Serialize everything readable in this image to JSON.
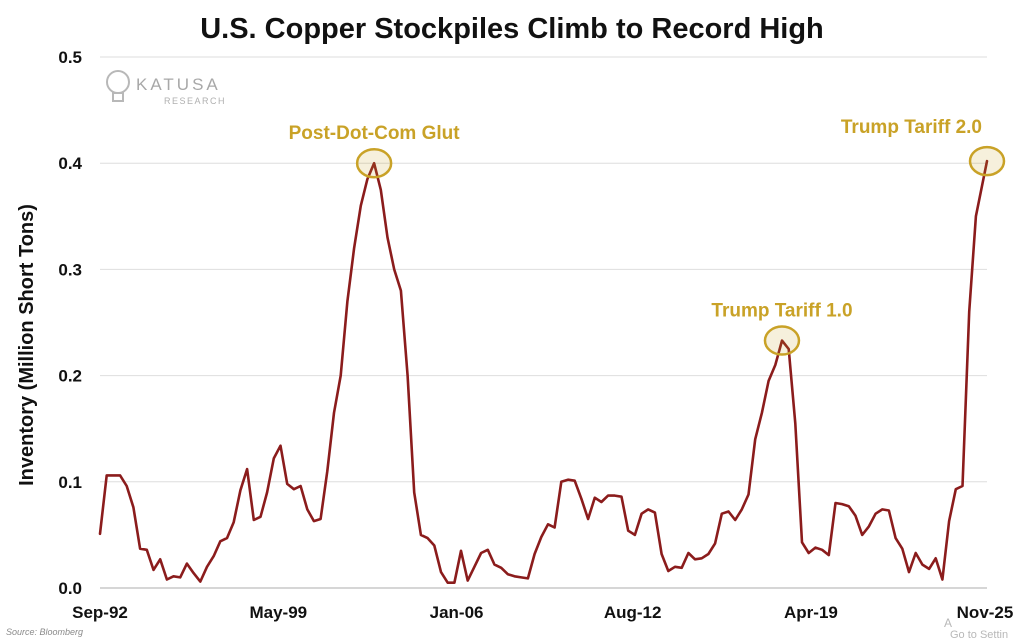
{
  "chart_data": {
    "type": "line",
    "title": "U.S. Copper Stockpiles Climb to Record High",
    "ylabel": "Inventory (Million Short Tons)",
    "xlabel": "",
    "ylim": [
      0.0,
      0.5
    ],
    "yticks": [
      "0.0",
      "0.1",
      "0.2",
      "0.3",
      "0.4",
      "0.5"
    ],
    "xlim": [
      "1992-09",
      "2025-11"
    ],
    "xticks": [
      {
        "label": "Sep-92",
        "date": "1992-09"
      },
      {
        "label": "May-99",
        "date": "1999-05"
      },
      {
        "label": "Jan-06",
        "date": "2006-01"
      },
      {
        "label": "Aug-12",
        "date": "2012-08"
      },
      {
        "label": "Apr-19",
        "date": "2019-04"
      },
      {
        "label": "Nov-25",
        "date": "2025-11"
      }
    ],
    "grid": true,
    "line_color": "#8b1c1c",
    "annotation_color": "#c9a227",
    "series": [
      {
        "points": [
          [
            "1992-09",
            0.051
          ],
          [
            "1992-12",
            0.106
          ],
          [
            "1993-03",
            0.106
          ],
          [
            "1993-06",
            0.106
          ],
          [
            "1993-09",
            0.096
          ],
          [
            "1993-12",
            0.076
          ],
          [
            "1994-03",
            0.037
          ],
          [
            "1994-06",
            0.036
          ],
          [
            "1994-09",
            0.017
          ],
          [
            "1994-12",
            0.027
          ],
          [
            "1995-03",
            0.008
          ],
          [
            "1995-06",
            0.011
          ],
          [
            "1995-09",
            0.01
          ],
          [
            "1995-12",
            0.023
          ],
          [
            "1996-03",
            0.014
          ],
          [
            "1996-06",
            0.006
          ],
          [
            "1996-09",
            0.02
          ],
          [
            "1996-12",
            0.03
          ],
          [
            "1997-03",
            0.044
          ],
          [
            "1997-06",
            0.047
          ],
          [
            "1997-09",
            0.062
          ],
          [
            "1997-12",
            0.092
          ],
          [
            "1998-03",
            0.112
          ],
          [
            "1998-06",
            0.064
          ],
          [
            "1998-09",
            0.067
          ],
          [
            "1998-12",
            0.09
          ],
          [
            "1999-03",
            0.122
          ],
          [
            "1999-06",
            0.134
          ],
          [
            "1999-09",
            0.098
          ],
          [
            "1999-12",
            0.093
          ],
          [
            "2000-03",
            0.096
          ],
          [
            "2000-06",
            0.074
          ],
          [
            "2000-09",
            0.063
          ],
          [
            "2000-12",
            0.065
          ],
          [
            "2001-03",
            0.11
          ],
          [
            "2001-06",
            0.165
          ],
          [
            "2001-09",
            0.2
          ],
          [
            "2001-12",
            0.27
          ],
          [
            "2002-03",
            0.32
          ],
          [
            "2002-06",
            0.36
          ],
          [
            "2002-09",
            0.385
          ],
          [
            "2002-12",
            0.4
          ],
          [
            "2003-03",
            0.375
          ],
          [
            "2003-06",
            0.33
          ],
          [
            "2003-09",
            0.3
          ],
          [
            "2003-12",
            0.28
          ],
          [
            "2004-03",
            0.2
          ],
          [
            "2004-06",
            0.09
          ],
          [
            "2004-09",
            0.05
          ],
          [
            "2004-12",
            0.047
          ],
          [
            "2005-03",
            0.04
          ],
          [
            "2005-06",
            0.015
          ],
          [
            "2005-09",
            0.005
          ],
          [
            "2005-12",
            0.005
          ],
          [
            "2006-03",
            0.035
          ],
          [
            "2006-06",
            0.007
          ],
          [
            "2006-09",
            0.02
          ],
          [
            "2006-12",
            0.033
          ],
          [
            "2007-03",
            0.036
          ],
          [
            "2007-06",
            0.022
          ],
          [
            "2007-09",
            0.019
          ],
          [
            "2007-12",
            0.013
          ],
          [
            "2008-03",
            0.011
          ],
          [
            "2008-06",
            0.01
          ],
          [
            "2008-09",
            0.009
          ],
          [
            "2008-12",
            0.032
          ],
          [
            "2009-03",
            0.048
          ],
          [
            "2009-06",
            0.06
          ],
          [
            "2009-09",
            0.057
          ],
          [
            "2009-12",
            0.1
          ],
          [
            "2010-03",
            0.102
          ],
          [
            "2010-06",
            0.101
          ],
          [
            "2010-09",
            0.084
          ],
          [
            "2010-12",
            0.065
          ],
          [
            "2011-03",
            0.085
          ],
          [
            "2011-06",
            0.081
          ],
          [
            "2011-09",
            0.087
          ],
          [
            "2011-12",
            0.087
          ],
          [
            "2012-03",
            0.086
          ],
          [
            "2012-06",
            0.054
          ],
          [
            "2012-09",
            0.05
          ],
          [
            "2012-12",
            0.07
          ],
          [
            "2013-03",
            0.074
          ],
          [
            "2013-06",
            0.071
          ],
          [
            "2013-09",
            0.032
          ],
          [
            "2013-12",
            0.016
          ],
          [
            "2014-03",
            0.02
          ],
          [
            "2014-06",
            0.019
          ],
          [
            "2014-09",
            0.033
          ],
          [
            "2014-12",
            0.027
          ],
          [
            "2015-03",
            0.028
          ],
          [
            "2015-06",
            0.032
          ],
          [
            "2015-09",
            0.042
          ],
          [
            "2015-12",
            0.07
          ],
          [
            "2016-03",
            0.072
          ],
          [
            "2016-06",
            0.064
          ],
          [
            "2016-09",
            0.074
          ],
          [
            "2016-12",
            0.088
          ],
          [
            "2017-03",
            0.14
          ],
          [
            "2017-06",
            0.165
          ],
          [
            "2017-09",
            0.195
          ],
          [
            "2017-12",
            0.21
          ],
          [
            "2018-03",
            0.233
          ],
          [
            "2018-06",
            0.225
          ],
          [
            "2018-09",
            0.155
          ],
          [
            "2018-12",
            0.043
          ],
          [
            "2019-03",
            0.033
          ],
          [
            "2019-06",
            0.038
          ],
          [
            "2019-09",
            0.036
          ],
          [
            "2019-12",
            0.031
          ],
          [
            "2020-03",
            0.08
          ],
          [
            "2020-06",
            0.079
          ],
          [
            "2020-09",
            0.077
          ],
          [
            "2020-12",
            0.068
          ],
          [
            "2021-03",
            0.05
          ],
          [
            "2021-06",
            0.058
          ],
          [
            "2021-09",
            0.07
          ],
          [
            "2021-12",
            0.074
          ],
          [
            "2022-03",
            0.073
          ],
          [
            "2022-06",
            0.047
          ],
          [
            "2022-09",
            0.037
          ],
          [
            "2022-12",
            0.015
          ],
          [
            "2023-03",
            0.033
          ],
          [
            "2023-06",
            0.022
          ],
          [
            "2023-09",
            0.018
          ],
          [
            "2023-12",
            0.028
          ],
          [
            "2024-03",
            0.008
          ],
          [
            "2024-06",
            0.063
          ],
          [
            "2024-09",
            0.093
          ],
          [
            "2024-12",
            0.096
          ],
          [
            "2025-03",
            0.26
          ],
          [
            "2025-06",
            0.35
          ],
          [
            "2025-11",
            0.402
          ]
        ]
      }
    ],
    "annotations": [
      {
        "text": "Post-Dot-Com Glut",
        "date": "2002-12",
        "value": 0.4
      },
      {
        "text": "Trump Tariff 1.0",
        "date": "2018-03",
        "value": 0.233
      },
      {
        "text": "Trump Tariff 2.0",
        "date": "2025-11",
        "value": 0.402
      }
    ]
  },
  "logo": {
    "name": "KATUSA",
    "sub": "RESEARCH"
  },
  "source": "Source: Bloomberg",
  "watermark": {
    "line1": "A",
    "line2": "Go to Settin"
  }
}
